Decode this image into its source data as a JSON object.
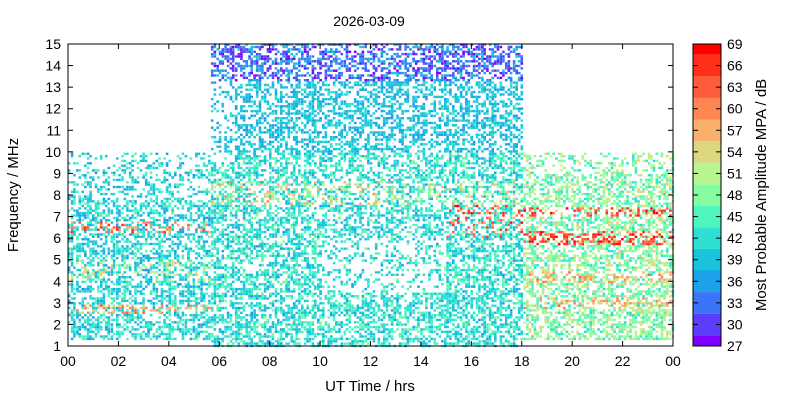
{
  "chart_data": {
    "type": "heatmap",
    "title": "2026-03-09",
    "xlabel": "UT Time / hrs",
    "ylabel": "Frequency / MHz",
    "colorbar_label": "Most Probable Amplitude MPA / dB",
    "xlim": [
      0,
      24
    ],
    "ylim": [
      1,
      15
    ],
    "x_ticks": [
      "00",
      "02",
      "04",
      "06",
      "08",
      "10",
      "12",
      "14",
      "16",
      "18",
      "20",
      "22",
      "00"
    ],
    "y_ticks": [
      "1",
      "2",
      "3",
      "4",
      "5",
      "6",
      "7",
      "8",
      "9",
      "10",
      "11",
      "12",
      "13",
      "14",
      "15"
    ],
    "colorbar": {
      "ticks": [
        "27",
        "30",
        "33",
        "36",
        "39",
        "42",
        "45",
        "48",
        "51",
        "54",
        "57",
        "60",
        "63",
        "66",
        "69"
      ],
      "min": 27,
      "max": 69,
      "colors": [
        "#7f00ff",
        "#5c3cfd",
        "#3a75f7",
        "#1ea1eb",
        "#19c3dc",
        "#2ee0d4",
        "#50f5bd",
        "#86fca0",
        "#b8f58e",
        "#dcd67f",
        "#f8b06b",
        "#ff8653",
        "#ff5c3b",
        "#ff3019",
        "#ff0000"
      ]
    },
    "grid": false,
    "legend": "colorbar-right",
    "summary_regions": [
      {
        "t_range": [
          0,
          5.6
        ],
        "f_range": [
          1.3,
          10.0
        ],
        "level": "mixed 36-51, bands near 2.7 and 6.5 MHz"
      },
      {
        "t_range": [
          5.6,
          18.0
        ],
        "f_range": [
          1.0,
          15.0
        ],
        "level": "mostly 36-45, 27-33 above 13.5 MHz"
      },
      {
        "t_range": [
          16.5,
          24.0
        ],
        "f_range": [
          1.3,
          10.0
        ],
        "level": "45-69, strong bands near 6 and 7.2 MHz"
      }
    ]
  }
}
